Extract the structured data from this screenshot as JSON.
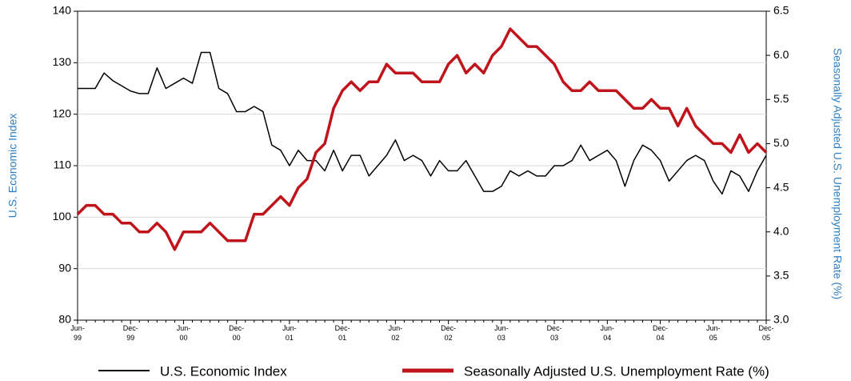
{
  "chart_data": {
    "type": "line",
    "ylabel": "U.S. Economic Index",
    "y2label": "Seasonally Adjusted U.S. Unemployment Rate (%)",
    "axis_label_color": "#2f7ec1",
    "categories": [
      "Jun-99",
      null,
      null,
      null,
      null,
      null,
      "Dec-99",
      null,
      null,
      null,
      null,
      null,
      "Jun-00",
      null,
      null,
      null,
      null,
      null,
      "Dec-00",
      null,
      null,
      null,
      null,
      null,
      "Jun-01",
      null,
      null,
      null,
      null,
      null,
      "Dec-01",
      null,
      null,
      null,
      null,
      null,
      "Jun-02",
      null,
      null,
      null,
      null,
      null,
      "Dec-02",
      null,
      null,
      null,
      null,
      null,
      "Jun-03",
      null,
      null,
      null,
      null,
      null,
      "Dec-03",
      null,
      null,
      null,
      null,
      null,
      "Jun-04",
      null,
      null,
      null,
      null,
      null,
      "Dec-04",
      null,
      null,
      null,
      null,
      null,
      "Jun-05",
      null,
      null,
      null,
      null,
      null,
      "Dec-05"
    ],
    "series": [
      {
        "name": "U.S. Economic Index",
        "color": "#000000",
        "axis": "y",
        "values": [
          125,
          125,
          125,
          128,
          126.5,
          125.5,
          124.5,
          124,
          124,
          129,
          125,
          126,
          127,
          126,
          132,
          132,
          125,
          124,
          120.5,
          120.5,
          121.5,
          120.5,
          114,
          113,
          110,
          113,
          111,
          111,
          109,
          113,
          109,
          112,
          112,
          108,
          110,
          112,
          115,
          111,
          112,
          111,
          108,
          111,
          109,
          109,
          111,
          108,
          105,
          105,
          106,
          109,
          108,
          109,
          108,
          108,
          110,
          110,
          111,
          114,
          111,
          112,
          113,
          111,
          106,
          111,
          114,
          113,
          111,
          107,
          109,
          111,
          112,
          111,
          107,
          104.5,
          109,
          108,
          105,
          109,
          112
        ]
      },
      {
        "name": "Seasonally Adjusted U.S. Unemployment Rate (%)",
        "color": "#c0141c",
        "axis": "y2",
        "values": [
          4.2,
          4.3,
          4.3,
          4.2,
          4.2,
          4.1,
          4.1,
          4.0,
          4.0,
          4.1,
          4.0,
          3.8,
          4.0,
          4.0,
          4.0,
          4.1,
          4.0,
          3.9,
          3.9,
          3.9,
          4.2,
          4.2,
          4.3,
          4.4,
          4.3,
          4.5,
          4.6,
          4.9,
          5.0,
          5.4,
          5.6,
          5.7,
          5.6,
          5.7,
          5.7,
          5.9,
          5.8,
          5.8,
          5.8,
          5.7,
          5.7,
          5.7,
          5.9,
          6.0,
          5.8,
          5.9,
          5.8,
          6.0,
          6.1,
          6.3,
          6.2,
          6.1,
          6.1,
          6.0,
          5.9,
          5.7,
          5.6,
          5.6,
          5.7,
          5.6,
          5.6,
          5.6,
          5.5,
          5.4,
          5.4,
          5.5,
          5.4,
          5.4,
          5.2,
          5.4,
          5.2,
          5.1,
          5.0,
          5.0,
          4.9,
          5.1,
          4.9,
          5.0,
          4.9
        ]
      }
    ],
    "ylim": [
      80,
      140
    ],
    "yticks": [
      80,
      90,
      100,
      110,
      120,
      130,
      140
    ],
    "y2lim": [
      3,
      6.5
    ],
    "y2ticks": [
      {
        "value": 3,
        "label": "3.0"
      },
      3.5,
      {
        "value": 4,
        "label": "4.0"
      },
      4.5,
      {
        "value": 5,
        "label": "5.0"
      },
      5.5,
      {
        "value": 6,
        "label": "6.0"
      },
      6.5
    ],
    "grid": true,
    "legend": "bottom"
  }
}
